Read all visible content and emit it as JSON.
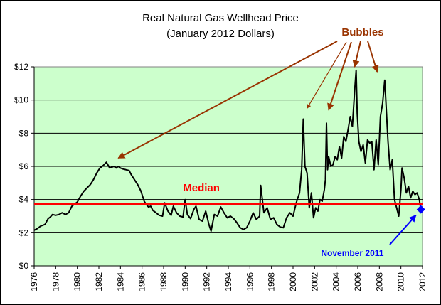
{
  "chart_data": {
    "type": "line",
    "title": "Real Natural Gas Wellhead Price",
    "subtitle": "(January 2012 Dollars)",
    "xlabel": "",
    "ylabel": "",
    "xlim": [
      1976,
      2012
    ],
    "ylim": [
      0,
      12
    ],
    "grid": true,
    "y_ticks": [
      0,
      2,
      4,
      6,
      8,
      10,
      12
    ],
    "y_tick_labels": [
      "$0",
      "$2",
      "$4",
      "$6",
      "$8",
      "$10",
      "$12"
    ],
    "x_ticks": [
      1976,
      1978,
      1980,
      1982,
      1984,
      1986,
      1988,
      1990,
      1992,
      1994,
      1996,
      1998,
      2000,
      2002,
      2004,
      2006,
      2008,
      2010,
      2012
    ],
    "x_tick_labels": [
      "1976",
      "1978",
      "1980",
      "1982",
      "1984",
      "1986",
      "1988",
      "1990",
      "1992",
      "1994",
      "1996",
      "1998",
      "2000",
      "2002",
      "2004",
      "2006",
      "2008",
      "2010",
      "2012"
    ],
    "colors": {
      "plot_bg": "#ccffcc",
      "line": "#000000",
      "median": "#ff0000",
      "bubble_annotation": "#993300",
      "november_annotation": "#0000ff"
    },
    "series": [
      {
        "name": "Real natural gas wellhead price",
        "x": [
          1976.0,
          1976.3,
          1976.6,
          1977.0,
          1977.3,
          1977.5,
          1977.7,
          1978.0,
          1978.3,
          1978.6,
          1978.9,
          1979.2,
          1979.5,
          1979.7,
          1980.0,
          1980.3,
          1980.6,
          1980.9,
          1981.2,
          1981.5,
          1981.8,
          1982.1,
          1982.4,
          1982.7,
          1983.0,
          1983.2,
          1983.4,
          1983.6,
          1983.8,
          1984.0,
          1984.2,
          1984.5,
          1984.8,
          1985.0,
          1985.3,
          1985.6,
          1985.9,
          1986.2,
          1986.4,
          1986.6,
          1986.8,
          1987.0,
          1987.3,
          1987.6,
          1987.9,
          1988.1,
          1988.4,
          1988.7,
          1988.9,
          1989.2,
          1989.5,
          1989.8,
          1990.0,
          1990.2,
          1990.5,
          1990.8,
          1991.0,
          1991.3,
          1991.6,
          1991.9,
          1992.2,
          1992.4,
          1992.7,
          1993.0,
          1993.3,
          1993.6,
          1993.9,
          1994.2,
          1994.5,
          1994.8,
          1995.1,
          1995.4,
          1995.7,
          1996.0,
          1996.3,
          1996.6,
          1996.9,
          1997.0,
          1997.3,
          1997.6,
          1997.9,
          1998.2,
          1998.5,
          1998.8,
          1999.1,
          1999.4,
          1999.7,
          2000.0,
          2000.3,
          2000.6,
          2000.8,
          2000.95,
          2001.1,
          2001.3,
          2001.5,
          2001.7,
          2001.9,
          2002.1,
          2002.3,
          2002.5,
          2002.7,
          2002.9,
          2003.0,
          2003.1,
          2003.2,
          2003.3,
          2003.5,
          2003.7,
          2003.9,
          2004.1,
          2004.3,
          2004.5,
          2004.7,
          2004.9,
          2005.1,
          2005.3,
          2005.5,
          2005.7,
          2005.85,
          2005.95,
          2006.1,
          2006.3,
          2006.5,
          2006.7,
          2006.9,
          2007.1,
          2007.3,
          2007.5,
          2007.7,
          2007.9,
          2008.1,
          2008.3,
          2008.5,
          2008.6,
          2008.8,
          2009.0,
          2009.2,
          2009.4,
          2009.6,
          2009.8,
          2010.0,
          2010.1,
          2010.3,
          2010.5,
          2010.7,
          2010.9,
          2011.1,
          2011.3,
          2011.5,
          2011.7,
          2011.85
        ],
        "values": [
          2.15,
          2.25,
          2.4,
          2.5,
          2.85,
          2.95,
          3.1,
          3.05,
          3.1,
          3.2,
          3.1,
          3.2,
          3.6,
          3.7,
          3.85,
          4.2,
          4.5,
          4.7,
          4.9,
          5.2,
          5.6,
          5.9,
          6.05,
          6.25,
          5.9,
          5.95,
          6.0,
          5.9,
          6.0,
          5.9,
          5.85,
          5.8,
          5.75,
          5.5,
          5.2,
          4.9,
          4.5,
          3.9,
          3.7,
          3.55,
          3.6,
          3.35,
          3.2,
          3.05,
          3.0,
          3.8,
          3.3,
          3.05,
          3.6,
          3.2,
          3.0,
          2.95,
          4.0,
          3.1,
          2.85,
          3.4,
          3.6,
          2.8,
          2.7,
          3.3,
          2.5,
          2.1,
          3.1,
          3.0,
          3.55,
          3.2,
          2.9,
          3.0,
          2.85,
          2.6,
          2.3,
          2.2,
          2.3,
          2.7,
          3.2,
          2.8,
          3.0,
          4.85,
          3.2,
          3.5,
          2.8,
          2.9,
          2.5,
          2.35,
          2.3,
          2.9,
          3.2,
          3.0,
          3.8,
          4.4,
          5.8,
          8.85,
          6.0,
          5.6,
          3.5,
          4.4,
          2.9,
          3.5,
          3.3,
          4.0,
          3.9,
          4.6,
          5.2,
          8.6,
          5.8,
          6.6,
          6.0,
          6.1,
          6.6,
          6.4,
          7.2,
          6.5,
          7.8,
          7.5,
          8.2,
          9.0,
          8.4,
          10.5,
          11.8,
          9.2,
          7.5,
          6.9,
          7.3,
          6.2,
          7.6,
          7.4,
          7.5,
          5.8,
          7.6,
          6.1,
          9.0,
          9.8,
          11.2,
          10.0,
          7.5,
          5.8,
          6.4,
          4.0,
          3.5,
          3.0,
          4.6,
          5.9,
          5.3,
          4.4,
          4.8,
          4.1,
          4.5,
          4.3,
          4.4,
          4.0,
          3.4
        ]
      }
    ],
    "reference_lines": [
      {
        "name": "Median",
        "y": 3.72
      }
    ],
    "highlight_point": {
      "label": "November 2011",
      "x": 2011.85,
      "y": 3.4
    },
    "annotations": [
      {
        "text": "Bubbles",
        "targets": [
          [
            1983.8,
            6.5
          ],
          [
            2001.3,
            9.5
          ],
          [
            2003.3,
            9.4
          ],
          [
            2005.7,
            12.0
          ],
          [
            2007.8,
            11.7
          ]
        ]
      },
      {
        "text": "Median",
        "x": 1991.5,
        "y": 4.5
      },
      {
        "text": "November 2011",
        "x": 2005.5,
        "y": 0.8
      }
    ],
    "legend": "none"
  }
}
